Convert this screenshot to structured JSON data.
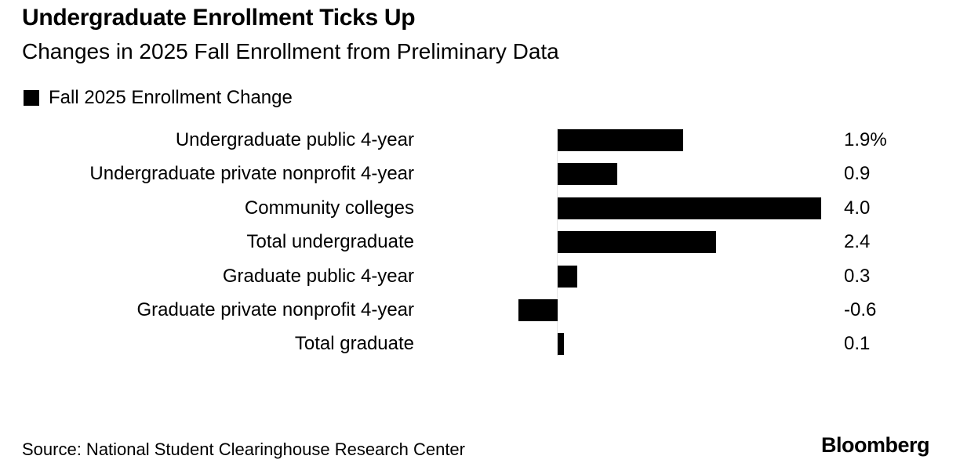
{
  "header": {
    "title": "Undergraduate Enrollment Ticks Up",
    "subtitle": "Changes in 2025 Fall Enrollment from Preliminary Data"
  },
  "legend": {
    "label": "Fall 2025 Enrollment Change",
    "swatch_color": "#000000"
  },
  "chart_data": {
    "type": "bar",
    "orientation": "horizontal",
    "title": "Undergraduate Enrollment Ticks Up",
    "subtitle": "Changes in 2025 Fall Enrollment from Preliminary Data",
    "legend_entries": [
      "Fall 2025 Enrollment Change"
    ],
    "legend_position": "top-left",
    "categories": [
      "Undergraduate public 4-year",
      "Undergraduate private nonprofit 4-year",
      "Community colleges",
      "Total undergraduate",
      "Graduate public 4-year",
      "Graduate private nonprofit 4-year",
      "Total graduate"
    ],
    "values": [
      1.9,
      0.9,
      4.0,
      2.4,
      0.3,
      -0.6,
      0.1
    ],
    "value_labels": [
      "1.9%",
      "0.9",
      "4.0",
      "2.4",
      "0.3",
      "-0.6",
      "0.1"
    ],
    "unit": "percent",
    "bar_color": "#000000",
    "xlim": [
      -0.6,
      4.0
    ],
    "grid": false
  },
  "footer": {
    "source": "Source: National Student Clearinghouse Research Center",
    "brand": "Bloomberg"
  }
}
